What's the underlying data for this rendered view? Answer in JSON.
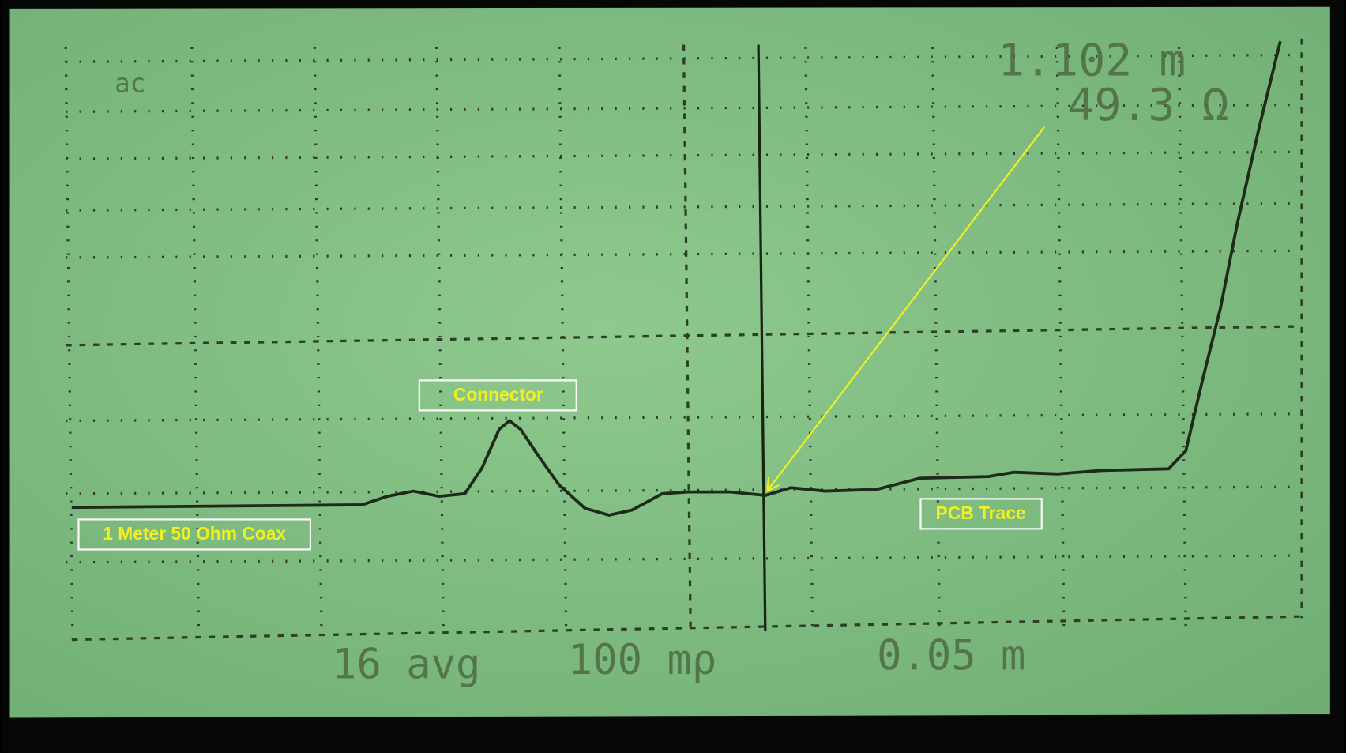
{
  "screen": {
    "mode": "ac",
    "readout": {
      "distance": "1.102 m",
      "impedance": "49.3 Ω"
    },
    "footer": {
      "averaging": "16 avg",
      "vertical_scale": "100 mρ",
      "horizontal_scale": "0.05 m"
    }
  },
  "annotations": {
    "connector": "Connector",
    "pcb_trace": "PCB Trace",
    "coax": "1 Meter 50 Ohm Coax"
  }
}
